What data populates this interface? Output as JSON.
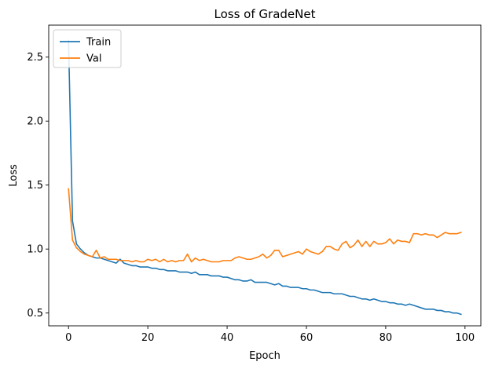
{
  "chart_data": {
    "type": "line",
    "title": "Loss of GradeNet",
    "xlabel": "Epoch",
    "ylabel": "Loss",
    "xlim": [
      -5,
      104
    ],
    "ylim": [
      0.4,
      2.75
    ],
    "xticks": [
      0,
      20,
      40,
      60,
      80,
      100
    ],
    "yticks": [
      0.5,
      1.0,
      1.5,
      2.0,
      2.5
    ],
    "ytick_labels": [
      "0.5",
      "1.0",
      "1.5",
      "2.0",
      "2.5"
    ],
    "legend": {
      "position": "top-left"
    },
    "grid": false,
    "series": [
      {
        "name": "Train",
        "color": "#1f77b4",
        "x": [
          0,
          1,
          2,
          3,
          4,
          5,
          6,
          7,
          8,
          9,
          10,
          11,
          12,
          13,
          14,
          15,
          16,
          17,
          18,
          19,
          20,
          21,
          22,
          23,
          24,
          25,
          26,
          27,
          28,
          29,
          30,
          31,
          32,
          33,
          34,
          35,
          36,
          37,
          38,
          39,
          40,
          41,
          42,
          43,
          44,
          45,
          46,
          47,
          48,
          49,
          50,
          51,
          52,
          53,
          54,
          55,
          56,
          57,
          58,
          59,
          60,
          61,
          62,
          63,
          64,
          65,
          66,
          67,
          68,
          69,
          70,
          71,
          72,
          73,
          74,
          75,
          76,
          77,
          78,
          79,
          80,
          81,
          82,
          83,
          84,
          85,
          86,
          87,
          88,
          89,
          90,
          91,
          92,
          93,
          94,
          95,
          96,
          97,
          98,
          99
        ],
        "values": [
          2.63,
          1.22,
          1.04,
          1.0,
          0.97,
          0.95,
          0.94,
          0.93,
          0.93,
          0.92,
          0.91,
          0.9,
          0.89,
          0.92,
          0.89,
          0.88,
          0.87,
          0.87,
          0.86,
          0.86,
          0.86,
          0.85,
          0.85,
          0.84,
          0.84,
          0.83,
          0.83,
          0.83,
          0.82,
          0.82,
          0.82,
          0.81,
          0.82,
          0.8,
          0.8,
          0.8,
          0.79,
          0.79,
          0.79,
          0.78,
          0.78,
          0.77,
          0.76,
          0.76,
          0.75,
          0.75,
          0.76,
          0.74,
          0.74,
          0.74,
          0.74,
          0.73,
          0.72,
          0.73,
          0.71,
          0.71,
          0.7,
          0.7,
          0.7,
          0.69,
          0.69,
          0.68,
          0.68,
          0.67,
          0.66,
          0.66,
          0.66,
          0.65,
          0.65,
          0.65,
          0.64,
          0.63,
          0.63,
          0.62,
          0.61,
          0.61,
          0.6,
          0.61,
          0.6,
          0.59,
          0.59,
          0.58,
          0.58,
          0.57,
          0.57,
          0.56,
          0.57,
          0.56,
          0.55,
          0.54,
          0.53,
          0.53,
          0.53,
          0.52,
          0.52,
          0.51,
          0.51,
          0.5,
          0.5,
          0.49
        ]
      },
      {
        "name": "Val",
        "color": "#ff7f0e",
        "x": [
          0,
          1,
          2,
          3,
          4,
          5,
          6,
          7,
          8,
          9,
          10,
          11,
          12,
          13,
          14,
          15,
          16,
          17,
          18,
          19,
          20,
          21,
          22,
          23,
          24,
          25,
          26,
          27,
          28,
          29,
          30,
          31,
          32,
          33,
          34,
          35,
          36,
          37,
          38,
          39,
          40,
          41,
          42,
          43,
          44,
          45,
          46,
          47,
          48,
          49,
          50,
          51,
          52,
          53,
          54,
          55,
          56,
          57,
          58,
          59,
          60,
          61,
          62,
          63,
          64,
          65,
          66,
          67,
          68,
          69,
          70,
          71,
          72,
          73,
          74,
          75,
          76,
          77,
          78,
          79,
          80,
          81,
          82,
          83,
          84,
          85,
          86,
          87,
          88,
          89,
          90,
          91,
          92,
          93,
          94,
          95,
          96,
          97,
          98,
          99
        ],
        "values": [
          1.47,
          1.07,
          1.01,
          0.98,
          0.96,
          0.95,
          0.94,
          0.99,
          0.93,
          0.94,
          0.92,
          0.92,
          0.92,
          0.91,
          0.91,
          0.91,
          0.9,
          0.91,
          0.9,
          0.9,
          0.92,
          0.91,
          0.92,
          0.9,
          0.92,
          0.9,
          0.91,
          0.9,
          0.91,
          0.91,
          0.96,
          0.9,
          0.93,
          0.91,
          0.92,
          0.91,
          0.9,
          0.9,
          0.9,
          0.91,
          0.91,
          0.91,
          0.93,
          0.94,
          0.93,
          0.92,
          0.92,
          0.93,
          0.94,
          0.96,
          0.93,
          0.95,
          0.99,
          0.99,
          0.94,
          0.95,
          0.96,
          0.97,
          0.98,
          0.96,
          1.0,
          0.98,
          0.97,
          0.96,
          0.98,
          1.02,
          1.02,
          1.0,
          0.99,
          1.04,
          1.06,
          1.01,
          1.03,
          1.07,
          1.02,
          1.06,
          1.02,
          1.06,
          1.04,
          1.04,
          1.05,
          1.08,
          1.04,
          1.07,
          1.06,
          1.06,
          1.05,
          1.12,
          1.12,
          1.11,
          1.12,
          1.11,
          1.11,
          1.09,
          1.11,
          1.13,
          1.12,
          1.12,
          1.12,
          1.13
        ]
      }
    ]
  }
}
